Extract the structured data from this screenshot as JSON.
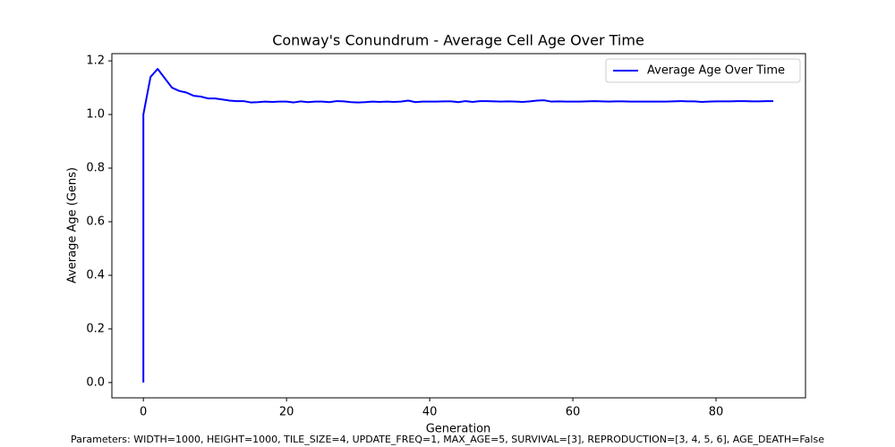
{
  "chart_data": {
    "type": "line",
    "title": "Conway's Conundrum - Average Cell Age Over Time",
    "x_label": "Generation",
    "y_label": "Average Age (Gens)",
    "footnote": "Parameters: WIDTH=1000, HEIGHT=1000, TILE_SIZE=4, UPDATE_FREQ=1, MAX_AGE=5, SURVIVAL=[3], REPRODUCTION=[3, 4, 5, 6], AGE_DEATH=False",
    "x": [
      0,
      0,
      1,
      2,
      3,
      4,
      5,
      6,
      7,
      8,
      9,
      10,
      11,
      12,
      13,
      14,
      15,
      16,
      17,
      18,
      19,
      20,
      21,
      22,
      23,
      24,
      25,
      26,
      27,
      28,
      29,
      30,
      31,
      32,
      33,
      34,
      35,
      36,
      37,
      38,
      39,
      40,
      41,
      42,
      43,
      44,
      45,
      46,
      47,
      48,
      49,
      50,
      51,
      52,
      53,
      54,
      55,
      56,
      57,
      58,
      59,
      60,
      61,
      62,
      63,
      64,
      65,
      66,
      67,
      68,
      69,
      70,
      71,
      72,
      73,
      74,
      75,
      76,
      77,
      78,
      79,
      80,
      81,
      82,
      83,
      84,
      85,
      86,
      87,
      88
    ],
    "series": [
      {
        "name": "Average Age Over Time",
        "color": "#0000ff",
        "values": [
          0,
          1.0,
          1.14,
          1.17,
          1.135,
          1.1,
          1.088,
          1.082,
          1.07,
          1.067,
          1.06,
          1.06,
          1.056,
          1.052,
          1.05,
          1.05,
          1.045,
          1.046,
          1.048,
          1.047,
          1.048,
          1.048,
          1.045,
          1.049,
          1.046,
          1.048,
          1.048,
          1.046,
          1.05,
          1.049,
          1.046,
          1.045,
          1.046,
          1.048,
          1.047,
          1.048,
          1.047,
          1.048,
          1.052,
          1.046,
          1.048,
          1.048,
          1.048,
          1.049,
          1.049,
          1.046,
          1.05,
          1.047,
          1.05,
          1.05,
          1.049,
          1.048,
          1.049,
          1.048,
          1.047,
          1.049,
          1.052,
          1.053,
          1.048,
          1.049,
          1.048,
          1.048,
          1.048,
          1.049,
          1.05,
          1.049,
          1.048,
          1.049,
          1.049,
          1.048,
          1.048,
          1.048,
          1.048,
          1.048,
          1.048,
          1.049,
          1.05,
          1.049,
          1.049,
          1.047,
          1.048,
          1.049,
          1.049,
          1.049,
          1.05,
          1.05,
          1.049,
          1.049,
          1.05,
          1.05
        ]
      }
    ],
    "xlim": [
      -4.4,
      92.5
    ],
    "ylim": [
      -0.057,
      1.227
    ],
    "xticks": [
      0,
      20,
      40,
      60,
      80
    ],
    "yticks": [
      {
        "value": 0,
        "label": "0.0"
      },
      0.2,
      0.4,
      0.6,
      0.8,
      {
        "value": 1,
        "label": "1.0"
      },
      1.2
    ],
    "grid": false,
    "legend": "upper right"
  }
}
